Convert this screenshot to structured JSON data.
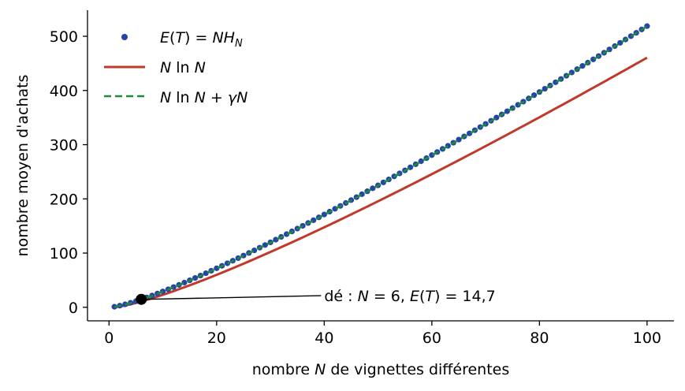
{
  "chart_data": {
    "type": "line",
    "xlabel": "nombre N de vignettes différentes",
    "ylabel": "nombre moyen d'achats",
    "xlim": [
      -4,
      105
    ],
    "ylim": [
      -25,
      548
    ],
    "xticks": [
      0,
      20,
      40,
      60,
      80,
      100
    ],
    "yticks": [
      0,
      100,
      200,
      300,
      400,
      500
    ],
    "xtick_labels": [
      "0",
      "20",
      "40",
      "60",
      "80",
      "100"
    ],
    "ytick_labels": [
      "0",
      "100",
      "200",
      "300",
      "400",
      "500"
    ],
    "grid": false,
    "legend_position": "top-left",
    "x_range": [
      1,
      100
    ],
    "series": [
      {
        "name": "E(T) = NH_N",
        "kind": "scatter",
        "color": "#2543a8",
        "function": "N*H_N"
      },
      {
        "name": "N ln N",
        "kind": "line",
        "color": "#c0392b",
        "function": "N*ln(N)"
      },
      {
        "name": "N ln N + γN",
        "kind": "dashed-line",
        "color": "#1e8a3c",
        "function": "N*ln(N)+0.5772*N"
      }
    ],
    "annotation": {
      "text": "dé : N = 6, E(T) = 14,7",
      "point": [
        6,
        14.7
      ],
      "text_at": [
        40,
        20
      ]
    }
  }
}
